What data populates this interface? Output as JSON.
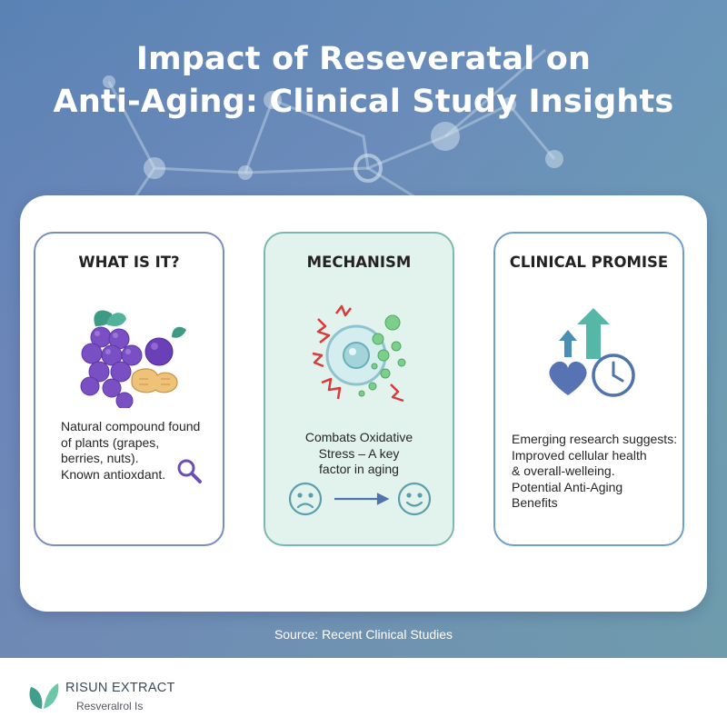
{
  "title": {
    "line1": "Impact of Reseveratal on",
    "line2": "Anti-Aging: Clinical Study Insights"
  },
  "cards": [
    {
      "heading": "WHAT IS IT?",
      "desc": [
        "Natural compound found",
        "of plants (grapes,",
        "berries, nuts).",
        "Known antioxdant."
      ],
      "icons": [
        "grapes-icon",
        "blueberry-icon",
        "peanut-icon",
        "magnifier-icon"
      ]
    },
    {
      "heading": "MECHANISM",
      "desc": [
        "Combats Oxidative",
        "Stress – A key",
        "factor in aging"
      ],
      "icons": [
        "cell-icon",
        "free-radical-icon",
        "sad-face-icon",
        "arrow-right-icon",
        "happy-face-icon"
      ]
    },
    {
      "heading": "CLINICAL PROMISE",
      "desc": [
        "Emerging research suggests:",
        "Improved cellular health",
        "& overall-welleing.",
        "Potential Anti-Aging",
        "Benefits"
      ],
      "icons": [
        "up-arrows-icon",
        "heart-icon",
        "clock-icon"
      ]
    }
  ],
  "source": "Source: Recent Clinical Studies",
  "brand": {
    "name": "RISUN EXTRACT",
    "tagline": "Resveralrol Is"
  },
  "colors": {
    "accent_teal": "#5fb3a3",
    "accent_purple": "#7d5ec4",
    "accent_blue": "#4f74ad",
    "card_mid_bg": "#e2f2ec"
  }
}
